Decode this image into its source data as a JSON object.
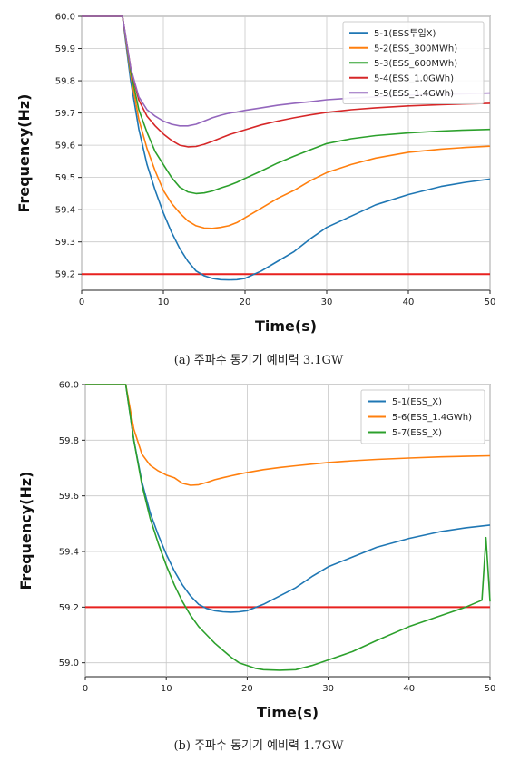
{
  "chart_data": [
    {
      "type": "line",
      "caption": "(a) 주파수 동기기 예비력 3.1GW",
      "xlabel": "Time(s)",
      "ylabel": "Frequency(Hz)",
      "xlim": [
        0,
        50
      ],
      "ylim": [
        59.15,
        60.0
      ],
      "xticks": [
        "0",
        "10",
        "20",
        "30",
        "40",
        "50"
      ],
      "yticks": [
        "59.2",
        "59.3",
        "59.4",
        "59.5",
        "59.6",
        "59.7",
        "59.8",
        "59.9",
        "60.0"
      ],
      "grid": true,
      "legend_position": "top-right",
      "threshold": {
        "y": 59.2,
        "color": "#e8211f"
      },
      "series": [
        {
          "name": "5-1(ESS투입X)",
          "color": "#1f77b4",
          "x": [
            0,
            5,
            6,
            7,
            8,
            9,
            10,
            11,
            12,
            13,
            14,
            15,
            16,
            17,
            18,
            19,
            20,
            22,
            24,
            26,
            28,
            30,
            33,
            36,
            40,
            44,
            47,
            50
          ],
          "y": [
            60.0,
            60.0,
            59.8,
            59.65,
            59.54,
            59.46,
            59.39,
            59.33,
            59.28,
            59.24,
            59.21,
            59.195,
            59.187,
            59.183,
            59.182,
            59.183,
            59.187,
            59.21,
            59.24,
            59.27,
            59.31,
            59.345,
            59.38,
            59.415,
            59.447,
            59.472,
            59.485,
            59.495
          ]
        },
        {
          "name": "5-2(ESS_300MWh)",
          "color": "#ff7f0e",
          "x": [
            0,
            5,
            6,
            7,
            8,
            9,
            10,
            11,
            12,
            13,
            14,
            15,
            16,
            17,
            18,
            19,
            20,
            22,
            24,
            26,
            28,
            30,
            33,
            36,
            40,
            44,
            47,
            50
          ],
          "y": [
            60.0,
            60.0,
            59.82,
            59.68,
            59.59,
            59.52,
            59.46,
            59.42,
            59.39,
            59.365,
            59.35,
            59.343,
            59.342,
            59.345,
            59.35,
            59.36,
            59.375,
            59.405,
            59.435,
            59.46,
            59.49,
            59.515,
            59.54,
            59.56,
            59.578,
            59.588,
            59.593,
            59.597
          ]
        },
        {
          "name": "5-3(ESS_600MWh)",
          "color": "#2ca02c",
          "x": [
            0,
            5,
            6,
            7,
            8,
            9,
            10,
            11,
            12,
            13,
            14,
            15,
            16,
            17,
            18,
            19,
            20,
            22,
            24,
            26,
            28,
            30,
            33,
            36,
            40,
            44,
            47,
            50
          ],
          "y": [
            60.0,
            60.0,
            59.83,
            59.71,
            59.64,
            59.58,
            59.54,
            59.5,
            59.47,
            59.455,
            59.45,
            59.452,
            59.458,
            59.467,
            59.475,
            59.485,
            59.497,
            59.52,
            59.545,
            59.566,
            59.586,
            59.605,
            59.62,
            59.63,
            59.638,
            59.644,
            59.647,
            59.649
          ]
        },
        {
          "name": "5-4(ESS_1.0GWh)",
          "color": "#d62728",
          "x": [
            0,
            5,
            6,
            7,
            8,
            9,
            10,
            11,
            12,
            13,
            14,
            15,
            16,
            17,
            18,
            19,
            20,
            22,
            24,
            26,
            28,
            30,
            33,
            36,
            40,
            44,
            47,
            50
          ],
          "y": [
            60.0,
            60.0,
            59.84,
            59.74,
            59.69,
            59.66,
            59.635,
            59.615,
            59.6,
            59.595,
            59.596,
            59.603,
            59.612,
            59.622,
            59.632,
            59.64,
            59.648,
            59.663,
            59.675,
            59.685,
            59.694,
            59.702,
            59.71,
            59.716,
            59.722,
            59.726,
            59.728,
            59.73
          ]
        },
        {
          "name": "5-5(ESS_1.4GWh)",
          "color": "#9467bd",
          "x": [
            0,
            5,
            6,
            7,
            8,
            9,
            10,
            11,
            12,
            13,
            14,
            15,
            16,
            17,
            18,
            19,
            20,
            22,
            24,
            26,
            28,
            30,
            33,
            36,
            40,
            44,
            47,
            50
          ],
          "y": [
            60.0,
            60.0,
            59.84,
            59.75,
            59.71,
            59.69,
            59.675,
            59.665,
            59.66,
            59.66,
            59.665,
            59.675,
            59.685,
            59.693,
            59.699,
            59.703,
            59.708,
            59.716,
            59.724,
            59.73,
            59.735,
            59.741,
            59.746,
            59.75,
            59.755,
            59.758,
            59.76,
            59.762
          ]
        }
      ]
    },
    {
      "type": "line",
      "caption": "(b) 주파수 동기기 예비력 1.7GW",
      "xlabel": "Time(s)",
      "ylabel": "Frequency(Hz)",
      "xlim": [
        0,
        50
      ],
      "ylim": [
        58.95,
        60.0
      ],
      "xticks": [
        "0",
        "10",
        "20",
        "30",
        "40",
        "50"
      ],
      "yticks": [
        "59.0",
        "59.2",
        "59.4",
        "59.6",
        "59.8",
        "60.0"
      ],
      "grid": true,
      "legend_position": "top-right",
      "threshold": {
        "y": 59.2,
        "color": "#e8211f"
      },
      "series": [
        {
          "name": "5-1(ESS_X)",
          "color": "#1f77b4",
          "x": [
            0,
            5,
            6,
            7,
            8,
            9,
            10,
            11,
            12,
            13,
            14,
            15,
            16,
            17,
            18,
            19,
            20,
            22,
            24,
            26,
            28,
            30,
            33,
            36,
            40,
            44,
            47,
            50
          ],
          "y": [
            60.0,
            60.0,
            59.8,
            59.65,
            59.54,
            59.46,
            59.39,
            59.33,
            59.28,
            59.24,
            59.21,
            59.195,
            59.187,
            59.183,
            59.182,
            59.183,
            59.187,
            59.21,
            59.24,
            59.27,
            59.31,
            59.345,
            59.38,
            59.415,
            59.447,
            59.472,
            59.485,
            59.495
          ]
        },
        {
          "name": "5-6(ESS_1.4GWh)",
          "color": "#ff7f0e",
          "x": [
            0,
            5,
            6,
            7,
            8,
            9,
            10,
            11,
            12,
            13,
            14,
            15,
            16,
            17,
            18,
            19,
            20,
            22,
            24,
            26,
            28,
            30,
            33,
            36,
            40,
            44,
            47,
            50
          ],
          "y": [
            60.0,
            60.0,
            59.84,
            59.75,
            59.71,
            59.69,
            59.675,
            59.665,
            59.645,
            59.638,
            59.64,
            59.648,
            59.658,
            59.665,
            59.672,
            59.678,
            59.684,
            59.694,
            59.702,
            59.708,
            59.714,
            59.72,
            59.726,
            59.731,
            59.736,
            59.74,
            59.742,
            59.744
          ]
        },
        {
          "name": "5-7(ESS_X)",
          "color": "#2ca02c",
          "x": [
            0,
            5,
            6,
            7,
            8,
            9,
            10,
            11,
            12,
            13,
            14,
            15,
            16,
            17,
            18,
            19,
            20,
            21,
            22,
            24,
            26,
            28,
            30,
            33,
            36,
            40,
            44,
            47,
            49,
            49.5,
            50
          ],
          "y": [
            60.0,
            60.0,
            59.8,
            59.64,
            59.52,
            59.43,
            59.35,
            59.28,
            59.22,
            59.17,
            59.13,
            59.1,
            59.07,
            59.045,
            59.02,
            59.0,
            58.99,
            58.98,
            58.975,
            58.973,
            58.975,
            58.99,
            59.01,
            59.04,
            59.08,
            59.13,
            59.17,
            59.2,
            59.225,
            59.45,
            59.22
          ]
        }
      ]
    }
  ]
}
